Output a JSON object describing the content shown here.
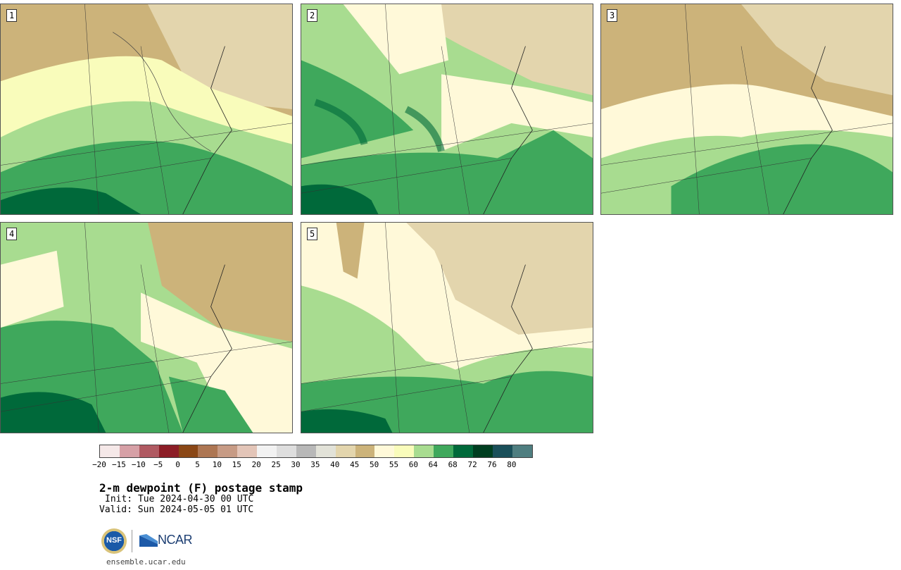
{
  "panels": [
    {
      "label": "1"
    },
    {
      "label": "2"
    },
    {
      "label": "3"
    },
    {
      "label": "4"
    },
    {
      "label": "5"
    }
  ],
  "colorbar": {
    "colors": [
      "#f5e8e8",
      "#d6a0a6",
      "#b05a62",
      "#8c1d26",
      "#8a4716",
      "#ad7653",
      "#c79b85",
      "#e3c5b8",
      "#f2f2f2",
      "#dedede",
      "#b8b8b8",
      "#e2e2d8",
      "#e3d5ad",
      "#ccb37a",
      "#fff9d9",
      "#f9fcbb",
      "#a8dc90",
      "#3fa85c",
      "#00693a",
      "#003e20",
      "#1a4f59",
      "#4f7e80"
    ],
    "labels": [
      "−20",
      "−15",
      "−10",
      "−5",
      "0",
      "5",
      "10",
      "15",
      "20",
      "25",
      "30",
      "35",
      "40",
      "45",
      "50",
      "55",
      "60",
      "64",
      "68",
      "72",
      "76",
      "80"
    ]
  },
  "title": "2-m dewpoint (F) postage stamp",
  "init": "Init: Tue 2024-04-30 00 UTC",
  "valid": "Valid: Sun 2024-05-05 01 UTC",
  "logo": {
    "nsf": "NSF",
    "ncar": "NCAR"
  },
  "site": "ensemble.ucar.edu"
}
